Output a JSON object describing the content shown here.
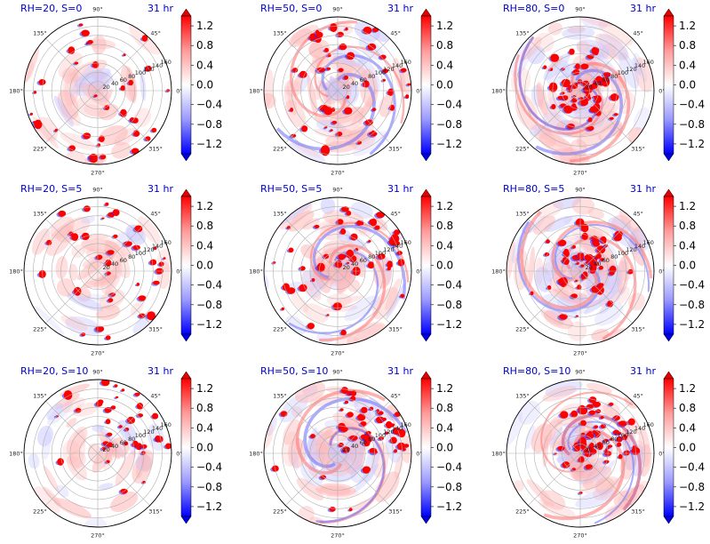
{
  "figure": {
    "colors": {
      "negative": "#0000ff",
      "zero": "#ffffff",
      "positive": "#ff0000",
      "title": "#0000cc",
      "grid": "#b0b0b0"
    },
    "colormap": "bwr",
    "angle_labels": [
      "0°",
      "45°",
      "90°",
      "135°",
      "180°",
      "225°",
      "270°",
      "315°"
    ],
    "radial_ticks": [
      "20",
      "40",
      "60",
      "80",
      "100",
      "120",
      "140",
      "160"
    ],
    "colorbar_ticks": [
      "1.2",
      "0.8",
      "0.4",
      "0.0",
      "−0.4",
      "−0.8",
      "−1.2"
    ]
  },
  "chart_data": [
    {
      "type": "heatmap",
      "projection": "polar",
      "title_left": "RH=20, S=0",
      "title_right": "31 hr",
      "colorbar_range": [
        -1.4,
        1.4
      ],
      "colorbar_ticks": [
        1.2,
        0.8,
        0.4,
        0.0,
        -0.4,
        -0.8,
        -1.2
      ],
      "radial_range": [
        0,
        160
      ]
    },
    {
      "type": "heatmap",
      "projection": "polar",
      "title_left": "RH=50, S=0",
      "title_right": "31 hr",
      "colorbar_range": [
        -1.4,
        1.4
      ],
      "colorbar_ticks": [
        1.2,
        0.8,
        0.4,
        0.0,
        -0.4,
        -0.8,
        -1.2
      ],
      "radial_range": [
        0,
        160
      ]
    },
    {
      "type": "heatmap",
      "projection": "polar",
      "title_left": "RH=80, S=0",
      "title_right": "31 hr",
      "colorbar_range": [
        -1.4,
        1.4
      ],
      "colorbar_ticks": [
        1.2,
        0.8,
        0.4,
        0.0,
        -0.4,
        -0.8,
        -1.2
      ],
      "radial_range": [
        0,
        160
      ]
    },
    {
      "type": "heatmap",
      "projection": "polar",
      "title_left": "RH=20, S=5",
      "title_right": "31 hr",
      "colorbar_range": [
        -1.4,
        1.4
      ],
      "colorbar_ticks": [
        1.2,
        0.8,
        0.4,
        0.0,
        -0.4,
        -0.8,
        -1.2
      ],
      "radial_range": [
        0,
        160
      ]
    },
    {
      "type": "heatmap",
      "projection": "polar",
      "title_left": "RH=50, S=5",
      "title_right": "31 hr",
      "colorbar_range": [
        -1.4,
        1.4
      ],
      "colorbar_ticks": [
        1.2,
        0.8,
        0.4,
        0.0,
        -0.4,
        -0.8,
        -1.2
      ],
      "radial_range": [
        0,
        160
      ]
    },
    {
      "type": "heatmap",
      "projection": "polar",
      "title_left": "RH=80, S=5",
      "title_right": "31 hr",
      "colorbar_range": [
        -1.4,
        1.4
      ],
      "colorbar_ticks": [
        1.2,
        0.8,
        0.4,
        0.0,
        -0.4,
        -0.8,
        -1.2
      ],
      "radial_range": [
        0,
        160
      ]
    },
    {
      "type": "heatmap",
      "projection": "polar",
      "title_left": "RH=20, S=10",
      "title_right": "31 hr",
      "colorbar_range": [
        -1.4,
        1.4
      ],
      "colorbar_ticks": [
        1.2,
        0.8,
        0.4,
        0.0,
        -0.4,
        -0.8,
        -1.2
      ],
      "radial_range": [
        0,
        160
      ]
    },
    {
      "type": "heatmap",
      "projection": "polar",
      "title_left": "RH=50, S=10",
      "title_right": "31 hr",
      "colorbar_range": [
        -1.4,
        1.4
      ],
      "colorbar_ticks": [
        1.2,
        0.8,
        0.4,
        0.0,
        -0.4,
        -0.8,
        -1.2
      ],
      "radial_range": [
        0,
        160
      ]
    },
    {
      "type": "heatmap",
      "projection": "polar",
      "title_left": "RH=80, S=10",
      "title_right": "31 hr",
      "colorbar_range": [
        -1.4,
        1.4
      ],
      "colorbar_ticks": [
        1.2,
        0.8,
        0.4,
        0.0,
        -0.4,
        -0.8,
        -1.2
      ],
      "radial_range": [
        0,
        160
      ]
    }
  ]
}
